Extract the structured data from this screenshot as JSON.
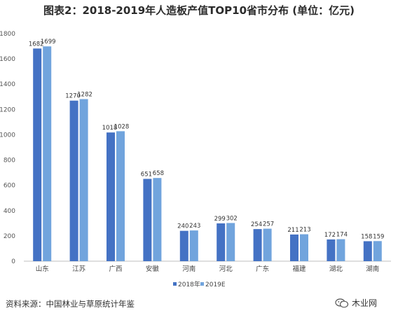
{
  "title": "图表2：2018-2019年人造板产值TOP10省市分布 (单位：亿元)",
  "source": "资料来源：中国林业与草原统计年鉴",
  "watermark": "木业网",
  "colors": {
    "series2018": "#4472c4",
    "series2019": "#71a4dd"
  },
  "chart_data": {
    "type": "bar",
    "categories": [
      "山东",
      "江苏",
      "广西",
      "安徽",
      "河南",
      "河北",
      "广东",
      "福建",
      "湖北",
      "湖南"
    ],
    "series": [
      {
        "name": "2018年",
        "values": [
          1682,
          1270,
          1018,
          651,
          240,
          299,
          254,
          211,
          172,
          158
        ]
      },
      {
        "name": "2019E",
        "values": [
          1699,
          1282,
          1028,
          658,
          243,
          302,
          257,
          213,
          174,
          159
        ]
      }
    ],
    "value_labels": [
      [
        "1682",
        "1270",
        "1018",
        "651",
        "240",
        "299",
        "254",
        "211",
        "172",
        "158"
      ],
      [
        "1699",
        "1282",
        "1028",
        "658",
        "243",
        "302",
        "257",
        "213",
        "174",
        "159"
      ]
    ],
    "yticks": [
      "0",
      "200",
      "400",
      "600",
      "800",
      "1000",
      "1200",
      "1400",
      "1600",
      "1800"
    ],
    "ylim": [
      0,
      1800
    ],
    "grid": false,
    "legend": "bottom"
  }
}
